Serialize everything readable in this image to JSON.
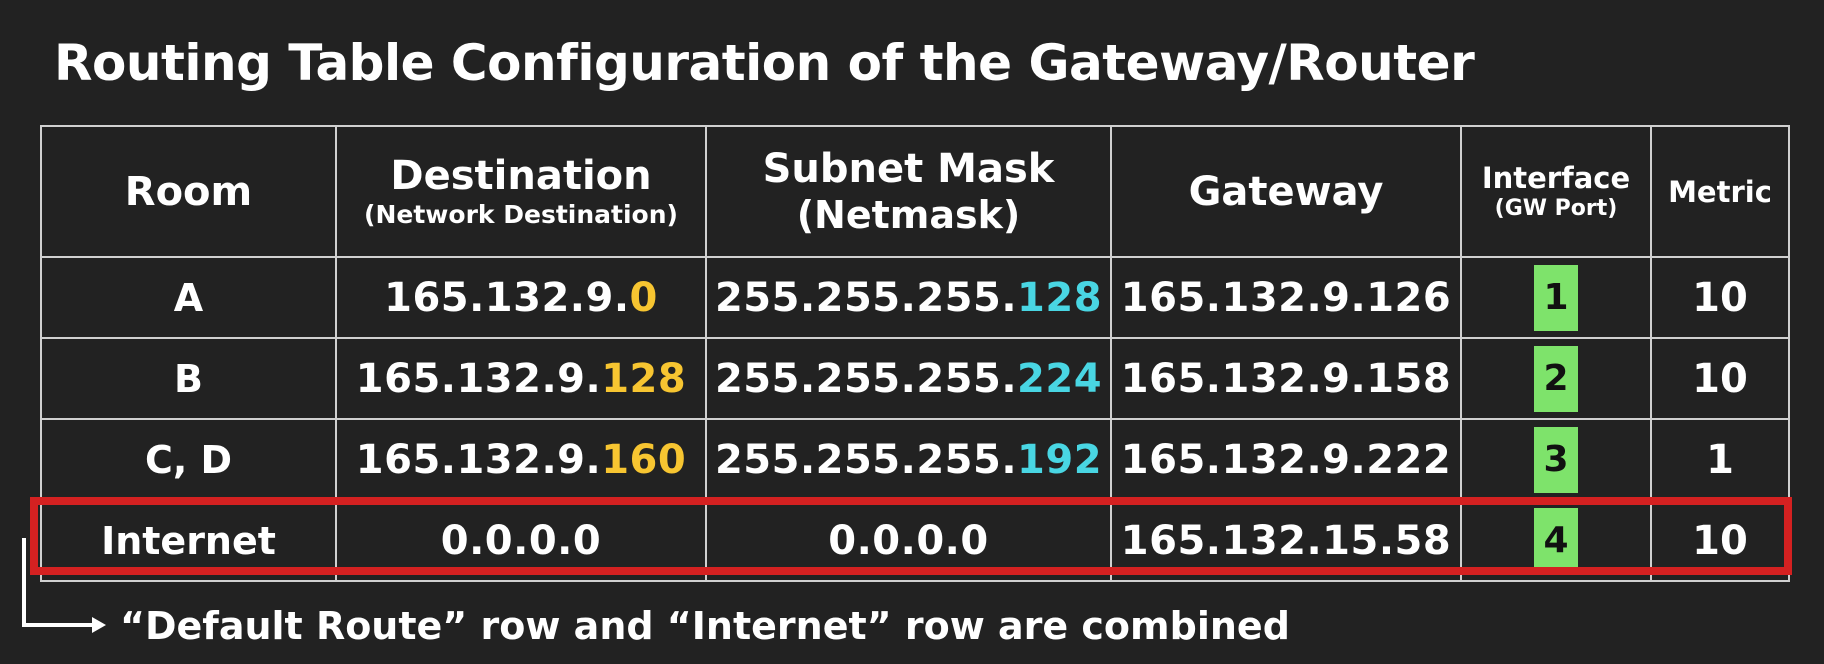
{
  "title": "Routing Table Configuration of the Gateway/Router",
  "table": {
    "headers": {
      "room": "Room",
      "destination": "Destination",
      "destination_sub": "(Network Destination)",
      "subnet": "Subnet Mask",
      "subnet_sub": "(Netmask)",
      "gateway": "Gateway",
      "interface": "Interface",
      "interface_sub": "(GW Port)",
      "metric": "Metric"
    },
    "rows": [
      {
        "room": "A",
        "dest_prefix": "165.132.9.",
        "dest_suffix": "0",
        "mask_prefix": "255.255.255.",
        "mask_suffix": "128",
        "gateway": "165.132.9.126",
        "interface": "1",
        "metric": "10"
      },
      {
        "room": "B",
        "dest_prefix": "165.132.9.",
        "dest_suffix": "128",
        "mask_prefix": "255.255.255.",
        "mask_suffix": "224",
        "gateway": "165.132.9.158",
        "interface": "2",
        "metric": "10"
      },
      {
        "room": "C, D",
        "dest_prefix": "165.132.9.",
        "dest_suffix": "160",
        "mask_prefix": "255.255.255.",
        "mask_suffix": "192",
        "gateway": "165.132.9.222",
        "interface": "3",
        "metric": "1"
      },
      {
        "room": "Internet",
        "dest_prefix": "0.0.0.0",
        "dest_suffix": "",
        "mask_prefix": "0.0.0.0",
        "mask_suffix": "",
        "gateway": "165.132.15.58",
        "interface": "4",
        "metric": "10"
      }
    ]
  },
  "note": "“Default Route” row and “Internet” row are combined",
  "colors": {
    "background": "#222222",
    "highlight_yellow": "#f7c531",
    "highlight_cyan": "#49d6e3",
    "port_green": "#7ee36b",
    "highlight_box_red": "#d42121"
  },
  "icons": {
    "note_arrow": "right-angle-arrow-icon"
  }
}
